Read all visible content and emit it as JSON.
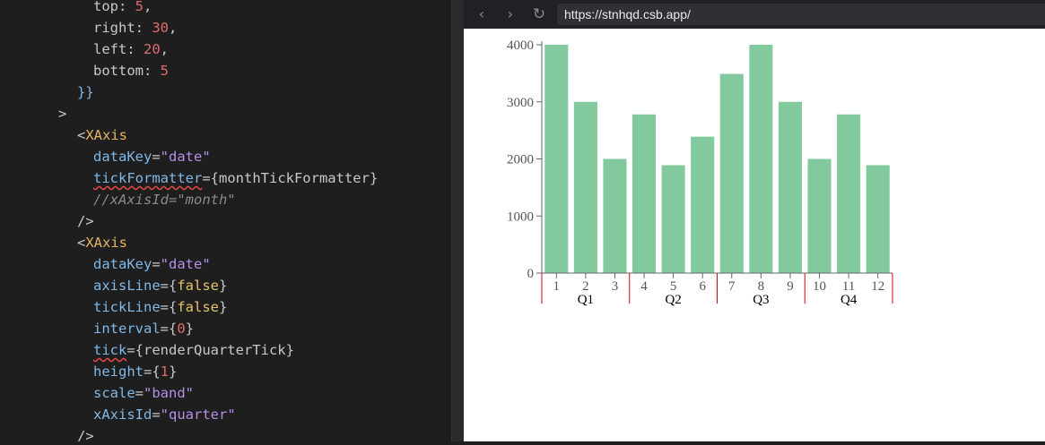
{
  "editor": {
    "lines": [
      {
        "indent": 104,
        "tokens": [
          [
            "punct",
            "top: "
          ],
          [
            "num",
            "5"
          ],
          [
            "punct",
            ","
          ]
        ]
      },
      {
        "indent": 104,
        "tokens": [
          [
            "punct",
            "right: "
          ],
          [
            "num",
            "30"
          ],
          [
            "punct",
            ","
          ]
        ]
      },
      {
        "indent": 104,
        "tokens": [
          [
            "punct",
            "left: "
          ],
          [
            "num",
            "20"
          ],
          [
            "punct",
            ","
          ]
        ]
      },
      {
        "indent": 104,
        "tokens": [
          [
            "punct",
            "bottom: "
          ],
          [
            "num",
            "5"
          ]
        ]
      },
      {
        "indent": 86,
        "tokens": [
          [
            "brace",
            "}}"
          ]
        ]
      },
      {
        "indent": 65,
        "tokens": [
          [
            "punct",
            ">"
          ]
        ]
      },
      {
        "indent": 86,
        "tokens": [
          [
            "punct",
            "<"
          ],
          [
            "tag",
            "XAxis"
          ]
        ]
      },
      {
        "indent": 104,
        "tokens": [
          [
            "attr",
            "dataKey"
          ],
          [
            "punct",
            "="
          ],
          [
            "str",
            "\"date\""
          ]
        ]
      },
      {
        "indent": 104,
        "tokens": [
          [
            "attr-sq",
            "tickFormatter"
          ],
          [
            "punct",
            "={monthTickFormatter}"
          ]
        ]
      },
      {
        "indent": 104,
        "tokens": [
          [
            "comment",
            "//xAxisId=\"month\""
          ]
        ]
      },
      {
        "indent": 86,
        "tokens": [
          [
            "punct",
            "/>"
          ]
        ]
      },
      {
        "indent": 86,
        "tokens": [
          [
            "punct",
            "<"
          ],
          [
            "tag",
            "XAxis"
          ]
        ]
      },
      {
        "indent": 104,
        "tokens": [
          [
            "attr",
            "dataKey"
          ],
          [
            "punct",
            "="
          ],
          [
            "str",
            "\"date\""
          ]
        ]
      },
      {
        "indent": 104,
        "tokens": [
          [
            "attr",
            "axisLine"
          ],
          [
            "punct",
            "={"
          ],
          [
            "bool",
            "false"
          ],
          [
            "punct",
            "}"
          ]
        ]
      },
      {
        "indent": 104,
        "tokens": [
          [
            "attr",
            "tickLine"
          ],
          [
            "punct",
            "={"
          ],
          [
            "bool",
            "false"
          ],
          [
            "punct",
            "}"
          ]
        ]
      },
      {
        "indent": 104,
        "tokens": [
          [
            "attr",
            "interval"
          ],
          [
            "punct",
            "={"
          ],
          [
            "num",
            "0"
          ],
          [
            "punct",
            "}"
          ]
        ]
      },
      {
        "indent": 104,
        "tokens": [
          [
            "attr-sq",
            "tick"
          ],
          [
            "punct",
            "={renderQuarterTick}"
          ]
        ]
      },
      {
        "indent": 104,
        "tokens": [
          [
            "attr",
            "height"
          ],
          [
            "punct",
            "={"
          ],
          [
            "num",
            "1"
          ],
          [
            "punct",
            "}"
          ]
        ]
      },
      {
        "indent": 104,
        "tokens": [
          [
            "attr",
            "scale"
          ],
          [
            "punct",
            "="
          ],
          [
            "str",
            "\"band\""
          ]
        ]
      },
      {
        "indent": 104,
        "tokens": [
          [
            "attr",
            "xAxisId"
          ],
          [
            "punct",
            "="
          ],
          [
            "str",
            "\"quarter\""
          ]
        ]
      },
      {
        "indent": 86,
        "tokens": [
          [
            "punct",
            "/>"
          ]
        ]
      }
    ]
  },
  "browser": {
    "back_icon": "chevron-left-icon",
    "forward_icon": "chevron-right-icon",
    "reload_icon": "reload-icon",
    "back_glyph": "‹",
    "forward_glyph": "›",
    "reload_glyph": "↻",
    "url": "https://stnhqd.csb.app/"
  },
  "colors": {
    "bar": "#82ca9d",
    "quarter_divider": "#d0021b",
    "axis": "#666666"
  },
  "chart_data": {
    "type": "bar",
    "categories": [
      "1",
      "2",
      "3",
      "4",
      "5",
      "6",
      "7",
      "8",
      "9",
      "10",
      "11",
      "12"
    ],
    "values": [
      4000,
      3000,
      2000,
      2780,
      1890,
      2390,
      3490,
      4000,
      3000,
      2000,
      2780,
      1890
    ],
    "yticks": [
      "0",
      "1000",
      "2000",
      "3000",
      "4000"
    ],
    "ylim": [
      0,
      4000
    ],
    "quarters": [
      "Q1",
      "Q2",
      "Q3",
      "Q4"
    ],
    "grid": false,
    "legend": "none"
  }
}
